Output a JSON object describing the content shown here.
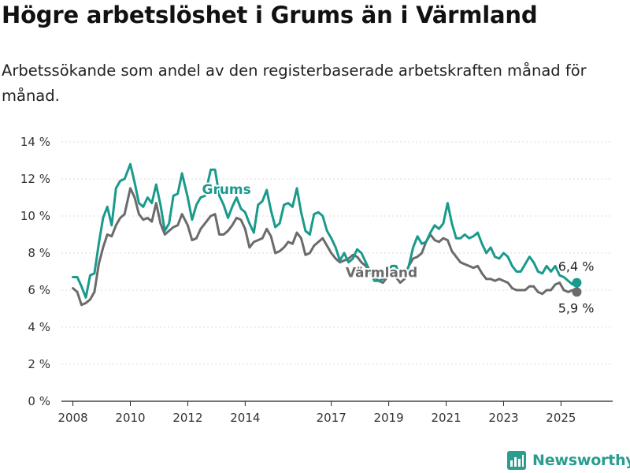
{
  "title": "Högre arbetslöshet i Grums än i Värmland",
  "subtitle": "Arbetssökande som andel av den registerbaserade arbetskraften månad för månad.",
  "brand": "Newsworthy",
  "colors": {
    "grums": "#1a9a8c",
    "varmland": "#6b6b6b",
    "grid": "#dddddd",
    "axis": "#222222"
  },
  "chart_data": {
    "type": "line",
    "xlabel": "",
    "ylabel": "",
    "ylim": [
      0,
      14
    ],
    "xlim": [
      2007.6,
      2026.8
    ],
    "y_ticks": [
      {
        "value": 0,
        "label": "0 %"
      },
      {
        "value": 2,
        "label": "2 %"
      },
      {
        "value": 4,
        "label": "4 %"
      },
      {
        "value": 6,
        "label": "6 %"
      },
      {
        "value": 8,
        "label": "8 %"
      },
      {
        "value": 10,
        "label": "10 %"
      },
      {
        "value": 12,
        "label": "12 %"
      },
      {
        "value": 14,
        "label": "14 %"
      }
    ],
    "x_ticks": [
      {
        "value": 2008,
        "label": "2008"
      },
      {
        "value": 2010,
        "label": "2010"
      },
      {
        "value": 2012,
        "label": "2012"
      },
      {
        "value": 2014,
        "label": "2014"
      },
      {
        "value": 2017,
        "label": "2017"
      },
      {
        "value": 2019,
        "label": "2019"
      },
      {
        "value": 2021,
        "label": "2021"
      },
      {
        "value": 2023,
        "label": "2023"
      },
      {
        "value": 2025,
        "label": "2025"
      }
    ],
    "grid": "horizontal",
    "legend": "inline labels on lines",
    "series": [
      {
        "name": "Grums",
        "x": [
          2008.0,
          2008.15,
          2008.3,
          2008.45,
          2008.6,
          2008.75,
          2008.9,
          2009.05,
          2009.2,
          2009.35,
          2009.5,
          2009.65,
          2009.8,
          2010.0,
          2010.15,
          2010.3,
          2010.45,
          2010.6,
          2010.75,
          2010.9,
          2011.05,
          2011.2,
          2011.35,
          2011.5,
          2011.65,
          2011.8,
          2012.0,
          2012.15,
          2012.3,
          2012.45,
          2012.6,
          2012.8,
          2012.95,
          2013.1,
          2013.25,
          2013.4,
          2013.55,
          2013.7,
          2013.85,
          2014.0,
          2014.15,
          2014.3,
          2014.45,
          2014.6,
          2014.75,
          2014.9,
          2015.05,
          2015.2,
          2015.35,
          2015.5,
          2015.65,
          2015.8,
          2015.95,
          2016.1,
          2016.25,
          2016.4,
          2016.55,
          2016.7,
          2016.85,
          2017.0,
          2017.15,
          2017.3,
          2017.45,
          2017.6,
          2017.75,
          2017.9,
          2018.05,
          2018.2,
          2018.35,
          2018.5,
          2018.65,
          2018.8,
          2018.95,
          2019.1,
          2019.25,
          2019.4,
          2019.55,
          2019.7,
          2019.85,
          2020.0,
          2020.15,
          2020.3,
          2020.45,
          2020.6,
          2020.75,
          2020.9,
          2021.05,
          2021.2,
          2021.35,
          2021.5,
          2021.65,
          2021.8,
          2021.95,
          2022.1,
          2022.25,
          2022.4,
          2022.55,
          2022.7,
          2022.85,
          2023.0,
          2023.15,
          2023.3,
          2023.45,
          2023.6,
          2023.75,
          2023.9,
          2024.05,
          2024.2,
          2024.35,
          2024.5,
          2024.65,
          2024.8,
          2024.95,
          2025.1,
          2025.25,
          2025.4,
          2025.55
        ],
        "values": [
          6.7,
          6.7,
          6.2,
          5.6,
          6.8,
          6.9,
          8.5,
          9.9,
          10.5,
          9.5,
          11.5,
          11.9,
          12.0,
          12.8,
          11.8,
          10.7,
          10.5,
          11.0,
          10.7,
          11.7,
          10.6,
          9.2,
          9.6,
          11.1,
          11.2,
          12.3,
          11.0,
          9.8,
          10.6,
          11.0,
          11.1,
          12.5,
          12.5,
          11.1,
          10.6,
          9.9,
          10.5,
          11.0,
          10.4,
          10.2,
          9.6,
          9.1,
          10.6,
          10.8,
          11.4,
          10.3,
          9.4,
          9.6,
          10.6,
          10.7,
          10.5,
          11.5,
          10.2,
          9.2,
          9.0,
          10.1,
          10.2,
          10.0,
          9.2,
          8.8,
          8.3,
          7.6,
          8.0,
          7.5,
          7.7,
          8.2,
          8.0,
          7.5,
          7.0,
          6.5,
          6.5,
          6.6,
          6.9,
          7.3,
          7.3,
          6.8,
          6.8,
          7.3,
          8.3,
          8.9,
          8.5,
          8.6,
          9.1,
          9.5,
          9.3,
          9.6,
          10.7,
          9.6,
          8.8,
          8.8,
          9.0,
          8.8,
          8.9,
          9.1,
          8.5,
          8.0,
          8.3,
          7.8,
          7.7,
          8.0,
          7.8,
          7.3,
          7.0,
          7.0,
          7.4,
          7.8,
          7.5,
          7.0,
          6.9,
          7.3,
          7.0,
          7.3,
          6.8,
          6.7,
          6.5,
          6.3,
          6.4
        ],
        "end_label": "6,4 %"
      },
      {
        "name": "Värmland",
        "x": [
          2008.0,
          2008.15,
          2008.3,
          2008.45,
          2008.6,
          2008.75,
          2008.9,
          2009.05,
          2009.2,
          2009.35,
          2009.5,
          2009.65,
          2009.8,
          2010.0,
          2010.15,
          2010.3,
          2010.45,
          2010.6,
          2010.75,
          2010.9,
          2011.05,
          2011.2,
          2011.35,
          2011.5,
          2011.65,
          2011.8,
          2012.0,
          2012.15,
          2012.3,
          2012.45,
          2012.6,
          2012.8,
          2012.95,
          2013.1,
          2013.25,
          2013.4,
          2013.55,
          2013.7,
          2013.85,
          2014.0,
          2014.15,
          2014.3,
          2014.45,
          2014.6,
          2014.75,
          2014.9,
          2015.05,
          2015.2,
          2015.35,
          2015.5,
          2015.65,
          2015.8,
          2015.95,
          2016.1,
          2016.25,
          2016.4,
          2016.55,
          2016.7,
          2016.85,
          2017.0,
          2017.15,
          2017.3,
          2017.45,
          2017.6,
          2017.75,
          2017.9,
          2018.05,
          2018.2,
          2018.35,
          2018.5,
          2018.65,
          2018.8,
          2018.95,
          2019.1,
          2019.25,
          2019.4,
          2019.55,
          2019.7,
          2019.85,
          2020.0,
          2020.15,
          2020.3,
          2020.45,
          2020.6,
          2020.75,
          2020.9,
          2021.05,
          2021.2,
          2021.35,
          2021.5,
          2021.65,
          2021.8,
          2021.95,
          2022.1,
          2022.25,
          2022.4,
          2022.55,
          2022.7,
          2022.85,
          2023.0,
          2023.15,
          2023.3,
          2023.45,
          2023.6,
          2023.75,
          2023.9,
          2024.05,
          2024.2,
          2024.35,
          2024.5,
          2024.65,
          2024.8,
          2024.95,
          2025.1,
          2025.25,
          2025.4,
          2025.55
        ],
        "values": [
          6.1,
          5.9,
          5.2,
          5.3,
          5.5,
          5.9,
          7.4,
          8.3,
          9.0,
          8.9,
          9.5,
          9.9,
          10.1,
          11.5,
          11.0,
          10.1,
          9.8,
          9.9,
          9.7,
          10.7,
          9.6,
          9.0,
          9.2,
          9.4,
          9.5,
          10.1,
          9.5,
          8.7,
          8.8,
          9.3,
          9.6,
          10.0,
          10.1,
          9.0,
          9.0,
          9.2,
          9.5,
          9.9,
          9.8,
          9.3,
          8.3,
          8.6,
          8.7,
          8.8,
          9.3,
          8.9,
          8.0,
          8.1,
          8.3,
          8.6,
          8.5,
          9.1,
          8.8,
          7.9,
          8.0,
          8.4,
          8.6,
          8.8,
          8.4,
          8.0,
          7.7,
          7.5,
          7.6,
          7.7,
          7.9,
          7.8,
          7.5,
          7.3,
          7.0,
          6.7,
          6.5,
          6.4,
          6.7,
          6.9,
          6.7,
          6.4,
          6.6,
          7.3,
          7.7,
          7.8,
          8.0,
          8.6,
          9.0,
          8.7,
          8.6,
          8.8,
          8.7,
          8.1,
          7.8,
          7.5,
          7.4,
          7.3,
          7.2,
          7.3,
          6.9,
          6.6,
          6.6,
          6.5,
          6.6,
          6.5,
          6.4,
          6.1,
          6.0,
          6.0,
          6.0,
          6.2,
          6.2,
          5.9,
          5.8,
          6.0,
          6.0,
          6.3,
          6.4,
          6.0,
          5.9,
          6.0,
          5.9
        ],
        "end_label": "5,9 %"
      }
    ]
  }
}
